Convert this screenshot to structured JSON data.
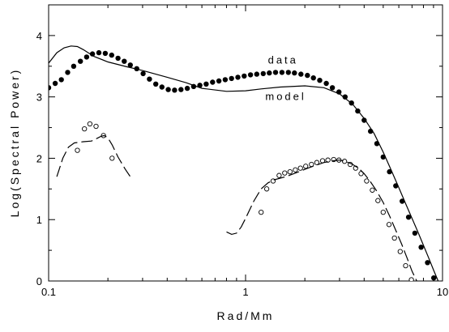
{
  "chart_data": {
    "type": "scatter",
    "title": "",
    "xlabel": "Rad/Mm",
    "ylabel": "Log(Spectral Power)",
    "xscale": "log",
    "xlim": [
      0.1,
      10
    ],
    "ylim": [
      0,
      4.5
    ],
    "x_ticks": [
      {
        "value": 0.1,
        "label": "0.1"
      },
      {
        "value": 1,
        "label": "1"
      },
      {
        "value": 10,
        "label": "10"
      }
    ],
    "y_ticks": [
      {
        "value": 0,
        "label": "0"
      },
      {
        "value": 1,
        "label": "1"
      },
      {
        "value": 2,
        "label": "2"
      },
      {
        "value": 3,
        "label": "3"
      },
      {
        "value": 4,
        "label": "4"
      }
    ],
    "grid": false,
    "legend": "none",
    "annotations": [
      {
        "text": "data",
        "x": 1.55,
        "y": 3.54
      },
      {
        "text": "model",
        "x": 1.6,
        "y": 2.95
      }
    ],
    "series": [
      {
        "style": "filled-dots",
        "x": [
          0.1,
          0.108,
          0.116,
          0.125,
          0.134,
          0.145,
          0.156,
          0.167,
          0.18,
          0.194,
          0.209,
          0.225,
          0.242,
          0.26,
          0.28,
          0.302,
          0.325,
          0.35,
          0.376,
          0.405,
          0.436,
          0.47,
          0.506,
          0.545,
          0.586,
          0.631,
          0.68,
          0.732,
          0.788,
          0.849,
          0.914,
          0.984,
          1.06,
          1.14,
          1.23,
          1.32,
          1.42,
          1.53,
          1.65,
          1.77,
          1.91,
          2.06,
          2.21,
          2.38,
          2.57,
          2.76,
          2.98,
          3.2,
          3.45,
          3.71,
          4.0,
          4.31,
          4.64,
          5.0,
          5.38,
          5.79,
          6.24,
          6.72,
          7.24,
          7.79,
          8.39,
          9.03
        ],
        "y": [
          3.15,
          3.22,
          3.28,
          3.4,
          3.5,
          3.58,
          3.65,
          3.7,
          3.72,
          3.71,
          3.68,
          3.63,
          3.58,
          3.52,
          3.46,
          3.38,
          3.29,
          3.21,
          3.16,
          3.12,
          3.11,
          3.12,
          3.14,
          3.17,
          3.19,
          3.21,
          3.24,
          3.26,
          3.28,
          3.3,
          3.32,
          3.34,
          3.36,
          3.37,
          3.38,
          3.39,
          3.4,
          3.4,
          3.4,
          3.39,
          3.37,
          3.35,
          3.31,
          3.27,
          3.22,
          3.15,
          3.08,
          3.0,
          2.9,
          2.77,
          2.62,
          2.44,
          2.24,
          2.02,
          1.78,
          1.55,
          1.3,
          1.04,
          0.78,
          0.55,
          0.3,
          0.05
        ]
      },
      {
        "name": "model",
        "style": "solid-line",
        "x": [
          0.1,
          0.11,
          0.12,
          0.13,
          0.14,
          0.15,
          0.17,
          0.2,
          0.25,
          0.3,
          0.4,
          0.5,
          0.6,
          0.8,
          1.0,
          1.2,
          1.5,
          2.0,
          2.5,
          3.0,
          3.5,
          4.0,
          4.5,
          5.0,
          5.5,
          6.0,
          6.5,
          7.0,
          7.5,
          8.0,
          8.5,
          9.0,
          9.5
        ],
        "y": [
          3.55,
          3.72,
          3.8,
          3.83,
          3.82,
          3.77,
          3.66,
          3.57,
          3.49,
          3.43,
          3.32,
          3.23,
          3.14,
          3.09,
          3.1,
          3.13,
          3.16,
          3.18,
          3.15,
          3.05,
          2.88,
          2.65,
          2.4,
          2.1,
          1.8,
          1.52,
          1.26,
          1.02,
          0.8,
          0.58,
          0.38,
          0.18,
          0.0
        ]
      },
      {
        "style": "open-circles",
        "x": [
          0.14,
          0.152,
          0.162,
          0.174,
          0.19,
          0.21
        ],
        "y": [
          2.13,
          2.48,
          2.56,
          2.52,
          2.37,
          2.0
        ]
      },
      {
        "style": "dashed-line",
        "x": [
          0.11,
          0.118,
          0.126,
          0.135,
          0.15,
          0.165,
          0.175,
          0.185,
          0.192,
          0.2,
          0.21,
          0.225,
          0.245,
          0.26
        ],
        "y": [
          1.7,
          2.0,
          2.18,
          2.25,
          2.27,
          2.28,
          2.32,
          2.36,
          2.37,
          2.33,
          2.22,
          2.02,
          1.82,
          1.7
        ]
      },
      {
        "style": "open-circles",
        "x": [
          1.2,
          1.28,
          1.38,
          1.48,
          1.58,
          1.68,
          1.79,
          1.9,
          2.02,
          2.16,
          2.3,
          2.46,
          2.62,
          2.8,
          2.98,
          3.18,
          3.4,
          3.62,
          3.86,
          4.12,
          4.4,
          4.7,
          5.0,
          5.35,
          5.7,
          6.1,
          6.5,
          6.95
        ],
        "y": [
          1.12,
          1.5,
          1.63,
          1.72,
          1.76,
          1.78,
          1.81,
          1.84,
          1.87,
          1.9,
          1.93,
          1.96,
          1.97,
          1.98,
          1.97,
          1.95,
          1.9,
          1.84,
          1.75,
          1.63,
          1.48,
          1.31,
          1.12,
          0.92,
          0.7,
          0.48,
          0.25,
          0.02
        ]
      },
      {
        "style": "dashed-line",
        "x": [
          0.8,
          0.85,
          0.9,
          0.95,
          1.0,
          1.1,
          1.2,
          1.3,
          1.4,
          1.6,
          1.8,
          2.0,
          2.2,
          2.5,
          2.8,
          3.0,
          3.2,
          3.5,
          3.8,
          4.0,
          4.3,
          4.6,
          5.0,
          5.4,
          5.8,
          6.2,
          6.6,
          7.0,
          7.4
        ],
        "y": [
          0.8,
          0.76,
          0.78,
          0.88,
          1.02,
          1.3,
          1.5,
          1.6,
          1.65,
          1.7,
          1.76,
          1.82,
          1.87,
          1.93,
          1.96,
          1.97,
          1.95,
          1.9,
          1.82,
          1.75,
          1.62,
          1.48,
          1.28,
          1.05,
          0.82,
          0.6,
          0.38,
          0.16,
          0.0
        ]
      }
    ]
  }
}
